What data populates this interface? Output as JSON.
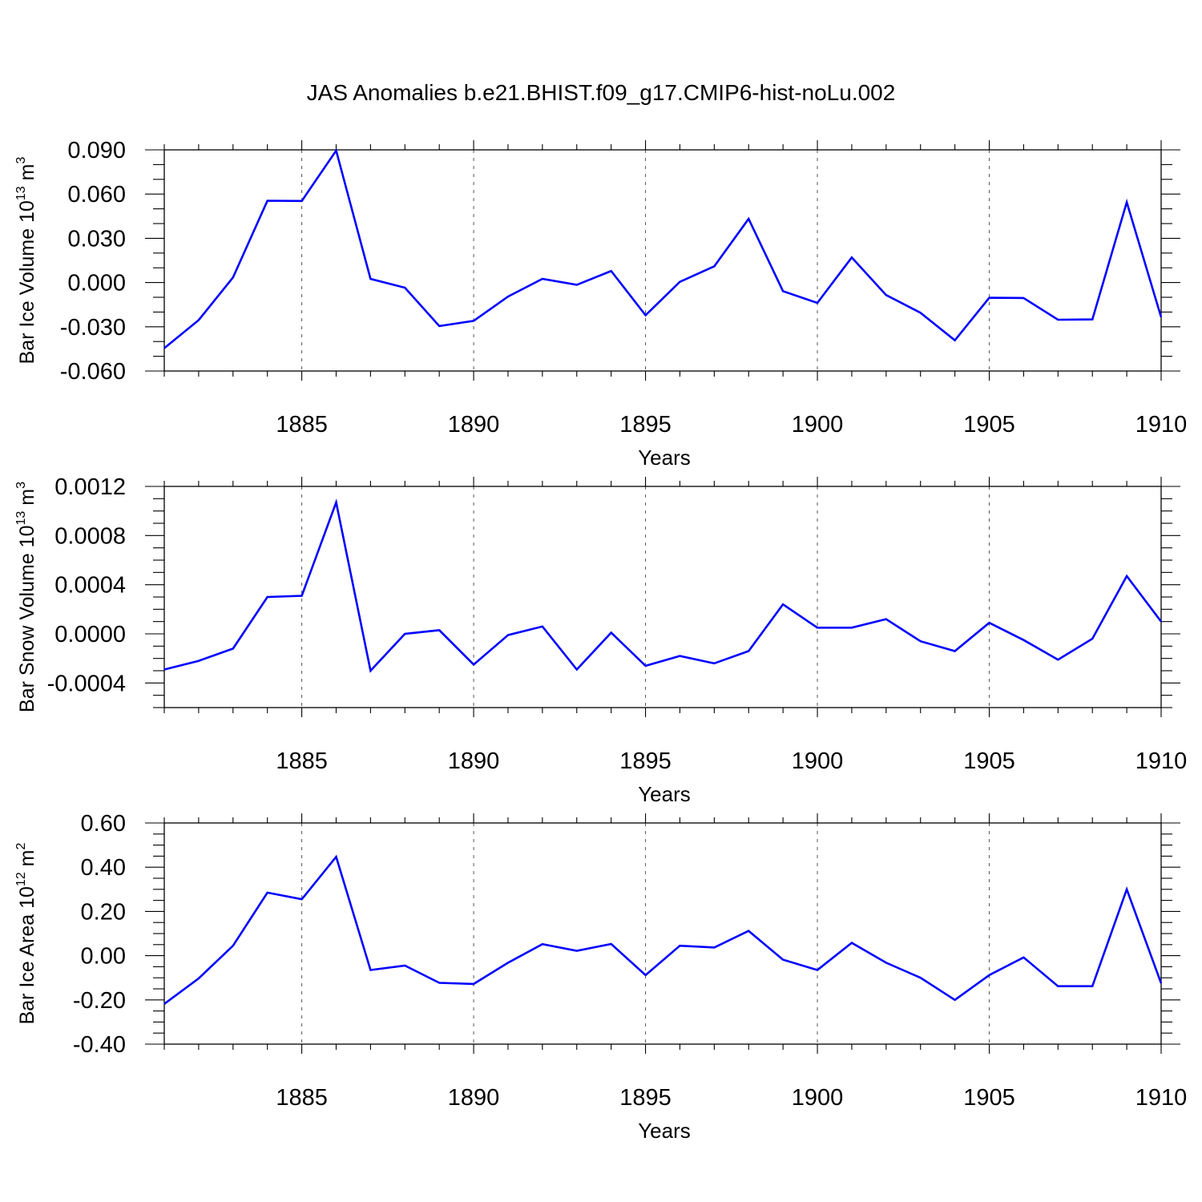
{
  "title": "JAS Anomalies b.e21.BHIST.f09_g17.CMIP6-hist-noLu.002",
  "chart_data": [
    {
      "type": "line",
      "ylabel": {
        "main": "Bar Ice Volume 10",
        "sup": "13",
        "mid": " m",
        "sup2": "3"
      },
      "xlabel": "Years",
      "xlim": [
        1881,
        1910
      ],
      "xticks": [
        1885,
        1890,
        1895,
        1900,
        1905,
        1910
      ],
      "ylim": [
        -0.06,
        0.09
      ],
      "yticks": [
        -0.06,
        -0.03,
        0.0,
        0.03,
        0.06,
        0.09
      ],
      "ytick_labels": [
        "-0.060",
        "-0.030",
        "0.000",
        "0.030",
        "0.060",
        "0.090"
      ],
      "yminor_step": 0.01,
      "grid_x": [
        1885,
        1890,
        1895,
        1900,
        1905
      ],
      "color": "#0000ff",
      "x": [
        1881,
        1882,
        1883,
        1884,
        1885,
        1886,
        1887,
        1888,
        1889,
        1890,
        1891,
        1892,
        1893,
        1894,
        1895,
        1896,
        1897,
        1898,
        1899,
        1900,
        1901,
        1902,
        1903,
        1904,
        1905,
        1906,
        1907,
        1908,
        1909,
        1910
      ],
      "y": [
        -0.0445,
        -0.0255,
        0.0035,
        0.0555,
        0.0553,
        0.0895,
        0.0025,
        -0.0035,
        -0.0295,
        -0.026,
        -0.0095,
        0.0025,
        -0.0015,
        0.0078,
        -0.0222,
        0.0005,
        0.011,
        0.0432,
        -0.0058,
        -0.0138,
        0.017,
        -0.0085,
        -0.0205,
        -0.0392,
        -0.0103,
        -0.0105,
        -0.0252,
        -0.025,
        0.0545,
        -0.0235
      ]
    },
    {
      "type": "line",
      "ylabel": {
        "main": "Bar Snow Volume 10",
        "sup": "13",
        "mid": " m",
        "sup2": "3"
      },
      "xlabel": "Years",
      "xlim": [
        1881,
        1910
      ],
      "xticks": [
        1885,
        1890,
        1895,
        1900,
        1905,
        1910
      ],
      "ylim": [
        -0.0006,
        0.0012
      ],
      "yticks": [
        -0.0004,
        0.0,
        0.0004,
        0.0008,
        0.0012
      ],
      "ytick_labels": [
        "-0.0004",
        "0.0000",
        "0.0004",
        "0.0008",
        "0.0012"
      ],
      "yminor_step": 0.0001,
      "grid_x": [
        1885,
        1890,
        1895,
        1900,
        1905
      ],
      "color": "#0000ff",
      "x": [
        1881,
        1882,
        1883,
        1884,
        1885,
        1886,
        1887,
        1888,
        1889,
        1890,
        1891,
        1892,
        1893,
        1894,
        1895,
        1896,
        1897,
        1898,
        1899,
        1900,
        1901,
        1902,
        1903,
        1904,
        1905,
        1906,
        1907,
        1908,
        1909,
        1910
      ],
      "y": [
        -0.00029,
        -0.00022,
        -0.00012,
        0.0003,
        0.00031,
        0.00107,
        -0.0003,
        0.0,
        3e-05,
        -0.00025,
        -1e-05,
        6e-05,
        -0.00029,
        1e-05,
        -0.00026,
        -0.00018,
        -0.00024,
        -0.00014,
        0.00024,
        5e-05,
        5e-05,
        0.00012,
        -6e-05,
        -0.00014,
        9e-05,
        -5e-05,
        -0.00021,
        -4e-05,
        0.00047,
        0.0001
      ]
    },
    {
      "type": "line",
      "ylabel": {
        "main": "Bar Ice Area 10",
        "sup": "12",
        "mid": " m",
        "sup2": "2"
      },
      "xlabel": "Years",
      "xlim": [
        1881,
        1910
      ],
      "xticks": [
        1885,
        1890,
        1895,
        1900,
        1905,
        1910
      ],
      "ylim": [
        -0.4,
        0.6
      ],
      "yticks": [
        -0.4,
        -0.2,
        0.0,
        0.2,
        0.4,
        0.6
      ],
      "ytick_labels": [
        "-0.40",
        "-0.20",
        "0.00",
        "0.20",
        "0.40",
        "0.60"
      ],
      "yminor_step": 0.05,
      "grid_x": [
        1885,
        1890,
        1895,
        1900,
        1905
      ],
      "color": "#0000ff",
      "x": [
        1881,
        1882,
        1883,
        1884,
        1885,
        1886,
        1887,
        1888,
        1889,
        1890,
        1891,
        1892,
        1893,
        1894,
        1895,
        1896,
        1897,
        1898,
        1899,
        1900,
        1901,
        1902,
        1903,
        1904,
        1905,
        1906,
        1907,
        1908,
        1909,
        1910
      ],
      "y": [
        -0.218,
        -0.103,
        0.045,
        0.285,
        0.255,
        0.447,
        -0.065,
        -0.045,
        -0.123,
        -0.128,
        -0.032,
        0.052,
        0.022,
        0.053,
        -0.088,
        0.045,
        0.037,
        0.112,
        -0.018,
        -0.065,
        0.058,
        -0.032,
        -0.1,
        -0.2,
        -0.088,
        -0.008,
        -0.138,
        -0.138,
        0.3,
        -0.125
      ]
    }
  ]
}
